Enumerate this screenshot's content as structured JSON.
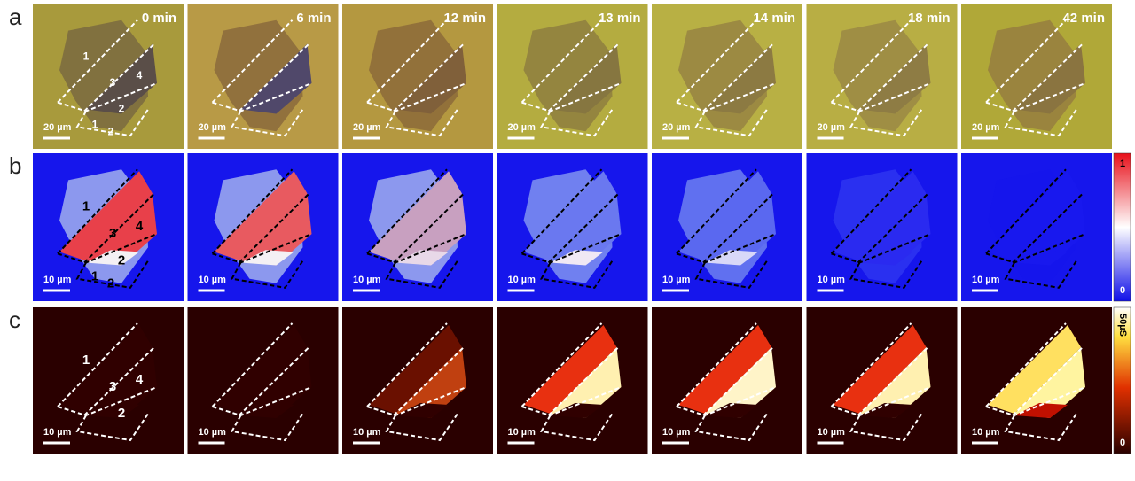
{
  "rows": [
    {
      "label": "a",
      "panels": [
        {
          "time": "0 min",
          "scale_bar": "20 µm"
        },
        {
          "time": "6 min",
          "scale_bar": "20 µm"
        },
        {
          "time": "12 min",
          "scale_bar": "20 µm"
        },
        {
          "time": "13 min",
          "scale_bar": "20 µm"
        },
        {
          "time": "14 min",
          "scale_bar": "20 µm"
        },
        {
          "time": "18 min",
          "scale_bar": "20 µm"
        },
        {
          "time": "42 min",
          "scale_bar": "20 µm"
        }
      ],
      "region_labels": [
        "1",
        "3",
        "4",
        "2",
        "1",
        "2"
      ]
    },
    {
      "label": "b",
      "panels": [
        {
          "scale_bar": "10 µm"
        },
        {
          "scale_bar": "10 µm"
        },
        {
          "scale_bar": "10 µm"
        },
        {
          "scale_bar": "10 µm"
        },
        {
          "scale_bar": "10 µm"
        },
        {
          "scale_bar": "10 µm"
        },
        {
          "scale_bar": "10 µm"
        }
      ],
      "region_labels": [
        "1",
        "3",
        "4",
        "2",
        "1",
        "2"
      ],
      "colorbar": {
        "top": "1",
        "bottom": "0"
      }
    },
    {
      "label": "c",
      "panels": [
        {
          "scale_bar": "10 µm"
        },
        {
          "scale_bar": "10 µm"
        },
        {
          "scale_bar": "10 µm"
        },
        {
          "scale_bar": "10 µm"
        },
        {
          "scale_bar": "10 µm"
        },
        {
          "scale_bar": "10 µm"
        },
        {
          "scale_bar": "10 µm"
        }
      ],
      "region_labels": [
        "1",
        "3",
        "4",
        "2"
      ],
      "colorbar": {
        "top": "50µS",
        "bottom": "0"
      }
    }
  ]
}
